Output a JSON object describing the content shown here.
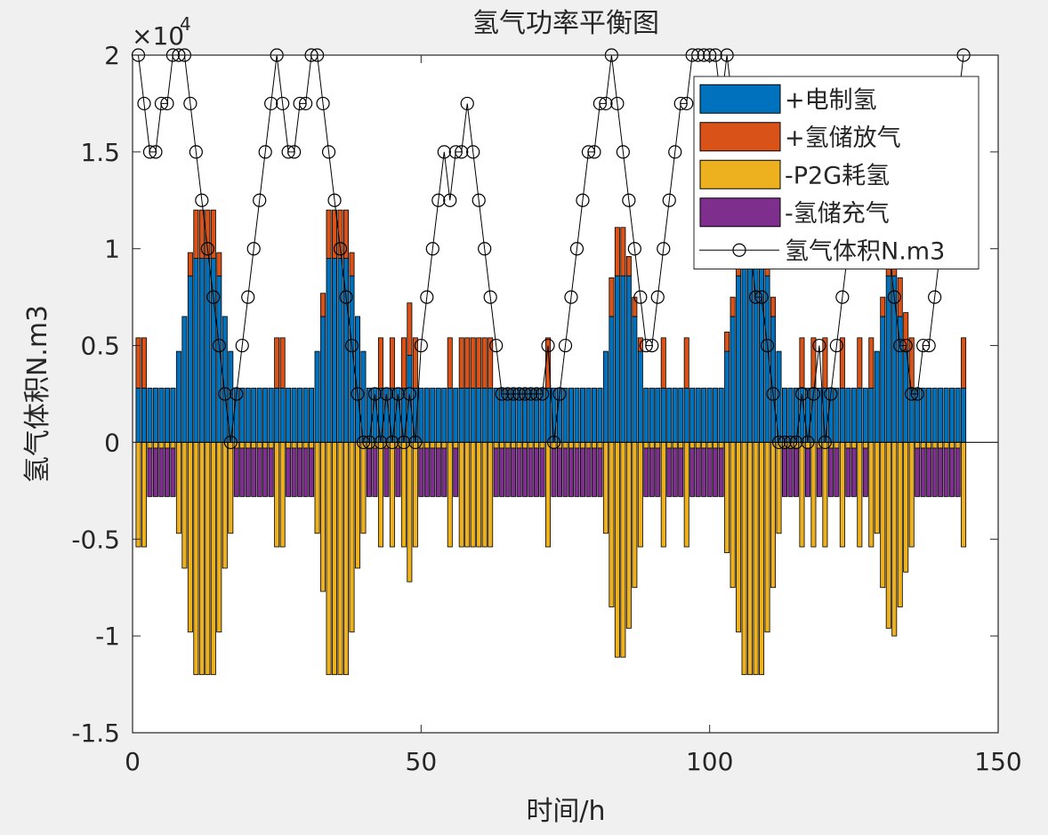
{
  "chart_data": {
    "type": "stacked_bar_line",
    "title": "氢气功率平衡图",
    "x_label": "时间/h",
    "y_label": "氢气体积N.m3",
    "y_multiplier": "×10",
    "y_multiplier_exponent": "4",
    "xlim": [
      0,
      150
    ],
    "xticks": [
      0,
      50,
      100,
      150
    ],
    "ylim": [
      -1.5,
      2
    ],
    "yticks": [
      -1.5,
      -1,
      -0.5,
      0,
      0.5,
      1,
      1.5,
      2
    ],
    "legend": "northeast",
    "x": [
      1,
      2,
      3,
      4,
      5,
      6,
      7,
      8,
      9,
      10,
      11,
      12,
      13,
      14,
      15,
      16,
      17,
      18,
      19,
      20,
      21,
      22,
      23,
      24,
      25,
      26,
      27,
      28,
      29,
      30,
      31,
      32,
      33,
      34,
      35,
      36,
      37,
      38,
      39,
      40,
      41,
      42,
      43,
      44,
      45,
      46,
      47,
      48,
      49,
      50,
      51,
      52,
      53,
      54,
      55,
      56,
      57,
      58,
      59,
      60,
      61,
      62,
      63,
      64,
      65,
      66,
      67,
      68,
      69,
      70,
      71,
      72,
      73,
      74,
      75,
      76,
      77,
      78,
      79,
      80,
      81,
      82,
      83,
      84,
      85,
      86,
      87,
      88,
      89,
      90,
      91,
      92,
      93,
      94,
      95,
      96,
      97,
      98,
      99,
      100,
      101,
      102,
      103,
      104,
      105,
      106,
      107,
      108,
      109,
      110,
      111,
      112,
      113,
      114,
      115,
      116,
      117,
      118,
      119,
      120,
      121,
      122,
      123,
      124,
      125,
      126,
      127,
      128,
      129,
      130,
      131,
      132,
      133,
      134,
      135,
      136,
      137,
      138,
      139,
      140,
      141,
      142,
      143,
      144
    ],
    "series": [
      {
        "name": "+电制氢",
        "color": "#0072BD",
        "stack": "pos",
        "values": [
          0.28,
          0.28,
          0.28,
          0.28,
          0.28,
          0.28,
          0.28,
          0.47,
          0.65,
          0.86,
          0.95,
          0.95,
          0.95,
          0.95,
          0.86,
          0.65,
          0.47,
          0.28,
          0.28,
          0.28,
          0.28,
          0.28,
          0.28,
          0.28,
          0.28,
          0.28,
          0.28,
          0.28,
          0.28,
          0.28,
          0.28,
          0.47,
          0.65,
          0.95,
          0.95,
          0.95,
          0.95,
          0.86,
          0.65,
          0.47,
          0.28,
          0.28,
          0.28,
          0.28,
          0.28,
          0.28,
          0.28,
          0.45,
          0.28,
          0.28,
          0.28,
          0.28,
          0.28,
          0.28,
          0.28,
          0.28,
          0.28,
          0.28,
          0.28,
          0.28,
          0.28,
          0.28,
          0.28,
          0.28,
          0.28,
          0.28,
          0.28,
          0.28,
          0.28,
          0.28,
          0.28,
          0.28,
          0.28,
          0.28,
          0.28,
          0.28,
          0.28,
          0.28,
          0.28,
          0.28,
          0.28,
          0.47,
          0.65,
          0.86,
          0.86,
          0.86,
          0.65,
          0.47,
          0.28,
          0.28,
          0.28,
          0.28,
          0.28,
          0.28,
          0.28,
          0.28,
          0.28,
          0.28,
          0.28,
          0.28,
          0.28,
          0.28,
          0.47,
          0.65,
          0.86,
          0.95,
          0.95,
          0.95,
          0.95,
          0.86,
          0.65,
          0.47,
          0.28,
          0.28,
          0.28,
          0.28,
          0.28,
          0.28,
          0.28,
          0.28,
          0.28,
          0.28,
          0.28,
          0.28,
          0.28,
          0.28,
          0.28,
          0.28,
          0.47,
          0.65,
          0.86,
          0.86,
          0.65,
          0.47,
          0.28,
          0.28,
          0.28,
          0.28,
          0.28,
          0.28,
          0.28,
          0.28,
          0.28,
          0.28
        ]
      },
      {
        "name": "+氢储放气",
        "color": "#D95319",
        "stack": "pos",
        "values": [
          0.26,
          0.26,
          0,
          0,
          0,
          0,
          0,
          0,
          0,
          0.12,
          0.25,
          0.25,
          0.25,
          0.25,
          0.12,
          0,
          0,
          0,
          0,
          0,
          0,
          0,
          0,
          0,
          0.26,
          0.26,
          0,
          0,
          0,
          0,
          0,
          0,
          0.12,
          0.25,
          0.25,
          0.25,
          0.25,
          0.12,
          0,
          0,
          0,
          0,
          0.26,
          0,
          0.26,
          0,
          0.26,
          0.27,
          0.26,
          0,
          0,
          0,
          0,
          0,
          0.26,
          0,
          0.26,
          0.26,
          0.26,
          0.26,
          0.26,
          0.26,
          0,
          0,
          0,
          0,
          0,
          0,
          0,
          0,
          0,
          0.26,
          0,
          0,
          0,
          0,
          0,
          0,
          0,
          0,
          0,
          0,
          0.2,
          0.25,
          0.25,
          0.1,
          0.1,
          0.07,
          0,
          0,
          0,
          0.26,
          0,
          0,
          0,
          0.26,
          0,
          0,
          0,
          0,
          0,
          0,
          0.1,
          0.1,
          0.12,
          0.25,
          0.25,
          0.25,
          0.25,
          0.12,
          0.1,
          0,
          0,
          0,
          0,
          0.26,
          0,
          0.26,
          0,
          0.26,
          0,
          0,
          0.26,
          0,
          0,
          0.26,
          0,
          0.26,
          0,
          0.1,
          0.1,
          0.14,
          0.2,
          0.2,
          0.26,
          0,
          0,
          0,
          0,
          0,
          0,
          0,
          0,
          0.26
        ]
      },
      {
        "name": "-P2G耗氢",
        "color": "#EDB120",
        "stack": "neg",
        "values": [
          -0.54,
          -0.54,
          -0.03,
          -0.03,
          -0.03,
          -0.03,
          -0.03,
          -0.47,
          -0.65,
          -0.98,
          -1.2,
          -1.2,
          -1.2,
          -1.2,
          -0.98,
          -0.65,
          -0.47,
          -0.03,
          -0.03,
          -0.03,
          -0.03,
          -0.03,
          -0.03,
          -0.03,
          -0.54,
          -0.54,
          -0.03,
          -0.03,
          -0.03,
          -0.03,
          -0.03,
          -0.47,
          -0.77,
          -1.2,
          -1.2,
          -1.2,
          -1.2,
          -0.98,
          -0.65,
          -0.47,
          -0.03,
          -0.03,
          -0.54,
          -0.03,
          -0.54,
          -0.03,
          -0.54,
          -0.72,
          -0.54,
          -0.03,
          -0.03,
          -0.03,
          -0.03,
          -0.03,
          -0.54,
          -0.03,
          -0.54,
          -0.54,
          -0.54,
          -0.54,
          -0.54,
          -0.54,
          -0.03,
          -0.03,
          -0.03,
          -0.03,
          -0.03,
          -0.03,
          -0.03,
          -0.03,
          -0.03,
          -0.54,
          -0.03,
          -0.03,
          -0.03,
          -0.03,
          -0.03,
          -0.03,
          -0.03,
          -0.03,
          -0.03,
          -0.47,
          -0.85,
          -1.11,
          -1.11,
          -0.96,
          -0.75,
          -0.54,
          -0.03,
          -0.03,
          -0.03,
          -0.54,
          -0.03,
          -0.03,
          -0.03,
          -0.54,
          -0.03,
          -0.03,
          -0.03,
          -0.03,
          -0.03,
          -0.03,
          -0.57,
          -0.75,
          -0.98,
          -1.2,
          -1.2,
          -1.2,
          -1.2,
          -0.98,
          -0.75,
          -0.47,
          -0.03,
          -0.03,
          -0.03,
          -0.54,
          -0.03,
          -0.54,
          -0.03,
          -0.54,
          -0.03,
          -0.03,
          -0.54,
          -0.03,
          -0.03,
          -0.54,
          -0.03,
          -0.54,
          -0.47,
          -0.75,
          -0.96,
          -1,
          -0.85,
          -0.67,
          -0.54,
          -0.03,
          -0.03,
          -0.03,
          -0.03,
          -0.03,
          -0.03,
          -0.03,
          -0.03,
          -0.54
        ]
      },
      {
        "name": "-氢储充气",
        "color": "#7E2F8E",
        "stack": "neg",
        "values": [
          0,
          0,
          -0.25,
          -0.25,
          -0.25,
          -0.25,
          -0.25,
          0,
          0,
          0,
          0,
          0,
          0,
          0,
          0,
          0,
          0,
          -0.25,
          -0.25,
          -0.25,
          -0.25,
          -0.25,
          -0.25,
          -0.25,
          0,
          0,
          -0.25,
          -0.25,
          -0.25,
          -0.25,
          -0.25,
          0,
          0,
          0,
          0,
          0,
          0,
          0,
          0,
          0,
          -0.25,
          -0.25,
          0,
          -0.25,
          0,
          -0.25,
          0,
          0,
          0,
          -0.25,
          -0.25,
          -0.25,
          -0.25,
          -0.25,
          0,
          -0.25,
          0,
          0,
          0,
          0,
          0,
          0,
          -0.25,
          -0.25,
          -0.25,
          -0.25,
          -0.25,
          -0.25,
          -0.25,
          -0.25,
          -0.25,
          0,
          -0.25,
          -0.25,
          -0.25,
          -0.25,
          -0.25,
          -0.25,
          -0.25,
          -0.25,
          -0.25,
          0,
          0,
          0,
          0,
          0,
          0,
          0,
          -0.25,
          -0.25,
          -0.25,
          0,
          -0.25,
          -0.25,
          -0.25,
          0,
          -0.25,
          -0.25,
          -0.25,
          -0.25,
          -0.25,
          -0.25,
          0,
          0,
          0,
          0,
          0,
          0,
          0,
          0,
          0,
          0,
          -0.25,
          -0.25,
          -0.25,
          0,
          -0.25,
          0,
          -0.25,
          0,
          -0.25,
          -0.25,
          0,
          -0.25,
          -0.25,
          0,
          -0.25,
          0,
          0,
          0,
          0,
          0,
          0,
          0,
          0,
          -0.25,
          -0.25,
          -0.25,
          -0.25,
          -0.25,
          -0.25,
          -0.25,
          -0.25,
          0
        ]
      },
      {
        "name": "氢气体积N.m3",
        "color": "#000000",
        "kind": "line",
        "values": [
          2,
          1.75,
          1.5,
          1.5,
          1.75,
          1.75,
          2,
          2,
          2,
          1.75,
          1.5,
          1.25,
          1,
          0.75,
          0.5,
          0.25,
          0,
          0.25,
          0.5,
          0.75,
          1,
          1.25,
          1.5,
          1.75,
          2,
          1.75,
          1.5,
          1.5,
          1.75,
          1.75,
          2,
          2,
          1.75,
          1.5,
          1.25,
          1,
          0.75,
          0.5,
          0.25,
          0,
          0,
          0.25,
          0,
          0.25,
          0,
          0.25,
          0,
          0.25,
          0,
          0.5,
          0.75,
          1,
          1.25,
          1.5,
          1.25,
          1.5,
          1.5,
          1.75,
          1.5,
          1.25,
          1,
          0.75,
          0.5,
          0.25,
          0.25,
          0.25,
          0.25,
          0.25,
          0.25,
          0.25,
          0.25,
          0.5,
          0,
          0.25,
          0.5,
          0.75,
          1,
          1.25,
          1.5,
          1.5,
          1.75,
          1.75,
          2,
          1.75,
          1.5,
          1.25,
          1,
          0.75,
          0.5,
          0.5,
          0.75,
          1,
          1.25,
          1.5,
          1.75,
          1.75,
          2,
          2,
          2,
          2,
          2,
          1.75,
          2,
          1.75,
          1.5,
          1.25,
          1,
          0.75,
          0.75,
          0.5,
          0.25,
          0,
          0,
          0,
          0,
          0.25,
          0,
          0.25,
          0.5,
          0,
          0.25,
          0.5,
          0.75,
          1,
          1.25,
          1.5,
          1.75,
          1.75,
          1.5,
          1.25,
          1,
          0.75,
          0.5,
          0.5,
          0.25,
          0.25,
          0.5,
          0.5,
          0.75,
          1,
          1.25,
          1.5,
          1.75,
          2
        ]
      }
    ]
  }
}
